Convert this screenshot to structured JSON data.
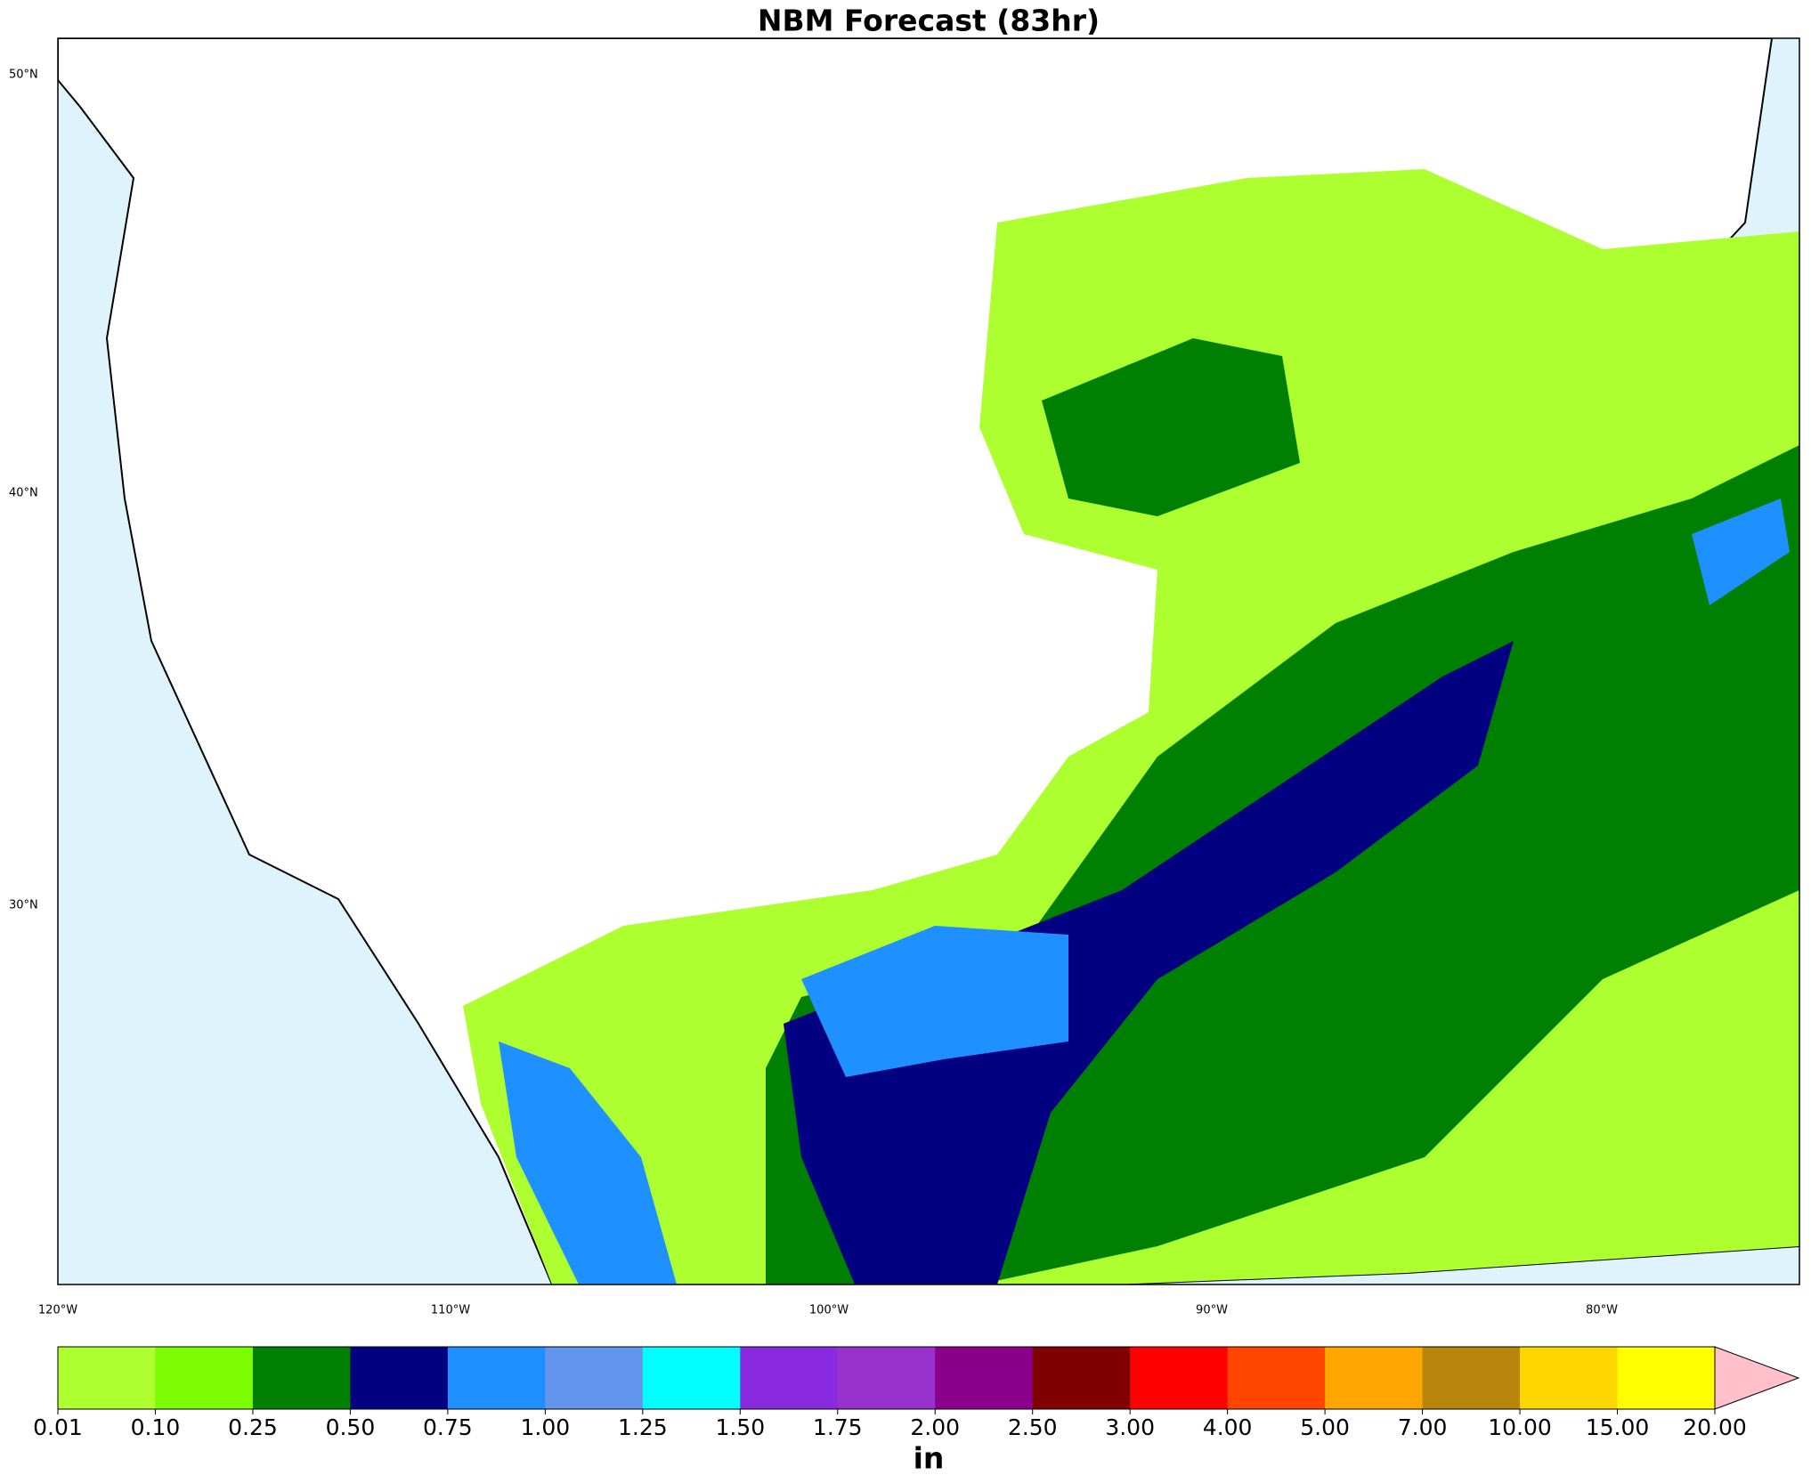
{
  "header": {
    "title": "NBM Forecast (83hr)"
  },
  "map": {
    "lat_labels": [
      "50°N",
      "40°N",
      "30°N"
    ],
    "lon_labels": [
      "120°W",
      "110°W",
      "100°W",
      "90°W",
      "80°W"
    ]
  },
  "colorbar": {
    "ticks": [
      "0.01",
      "0.10",
      "0.25",
      "0.50",
      "0.75",
      "1.00",
      "1.25",
      "1.50",
      "1.75",
      "2.00",
      "2.50",
      "3.00",
      "4.00",
      "5.00",
      "7.00",
      "10.00",
      "15.00",
      "20.00"
    ],
    "colors": [
      "#adff2f",
      "#7cfc00",
      "#008000",
      "#000080",
      "#1e90ff",
      "#6495ed",
      "#00ffff",
      "#8a2be2",
      "#9932cc",
      "#8b008b",
      "#800000",
      "#ff0000",
      "#ff4500",
      "#ffa500",
      "#b8860b",
      "#ffd700",
      "#ffff00"
    ],
    "extend_color": "#ffc0cb",
    "unit": "in"
  }
}
